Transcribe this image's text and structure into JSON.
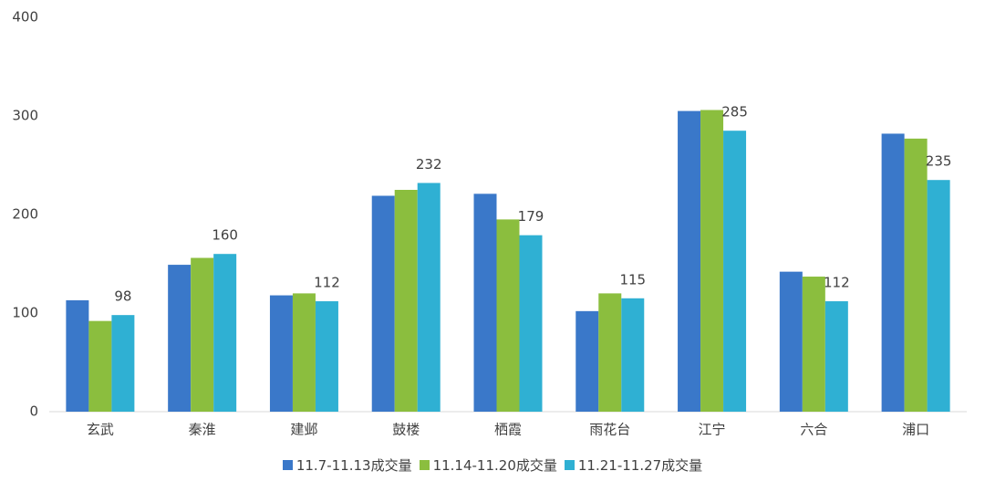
{
  "chart_data": {
    "type": "bar",
    "categories": [
      "玄武",
      "秦淮",
      "建邺",
      "鼓楼",
      "栖霞",
      "雨花台",
      "江宁",
      "六合",
      "浦口"
    ],
    "series": [
      {
        "name": "11.7-11.13成交量",
        "color": "#3a78c9",
        "values": [
          113,
          149,
          118,
          219,
          221,
          102,
          305,
          142,
          282
        ]
      },
      {
        "name": "11.14-11.20成交量",
        "color": "#8bbe3e",
        "values": [
          92,
          156,
          120,
          225,
          195,
          120,
          306,
          137,
          277
        ]
      },
      {
        "name": "11.21-11.27成交量",
        "color": "#2fb0d3",
        "values": [
          98,
          160,
          112,
          232,
          179,
          115,
          285,
          112,
          235
        ],
        "show_labels": true
      }
    ],
    "ylim": [
      0,
      400
    ],
    "yticks": [
      0,
      100,
      200,
      300,
      400
    ],
    "grid": false,
    "legend": "bottom"
  }
}
